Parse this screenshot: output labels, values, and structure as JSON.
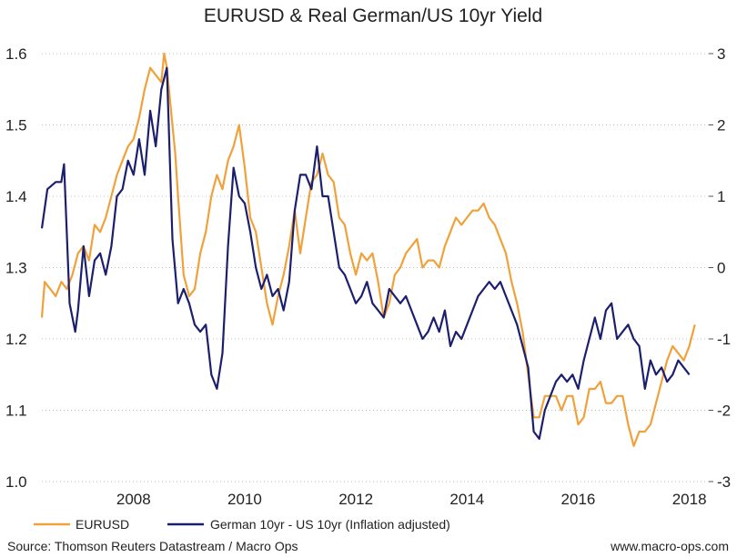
{
  "chart_data": {
    "type": "line",
    "title": "EURUSD & Real German/US 10yr Yield",
    "xlabel": "",
    "ylabel_left": "",
    "ylabel_right": "",
    "x_ticks": [
      "2008",
      "2010",
      "2012",
      "2014",
      "2016",
      "2018"
    ],
    "xlim": [
      2006.35,
      2018.35
    ],
    "ylim_left": [
      1.0,
      1.6
    ],
    "y_ticks_left": [
      "1.0",
      "1.1",
      "1.2",
      "1.3",
      "1.4",
      "1.5",
      "1.6"
    ],
    "ylim_right": [
      -3,
      3
    ],
    "y_ticks_right": [
      "-3",
      "-2",
      "-1",
      "0",
      "1",
      "2",
      "3"
    ],
    "grid": "horizontal-dotted",
    "legend_position": "bottom",
    "colors": {
      "eurusd": "#f0a13a",
      "spread": "#1c1f6e",
      "grid": "#bdbdbd"
    },
    "series": [
      {
        "name": "EURUSD",
        "axis": "left",
        "x": [
          2006.35,
          2006.4,
          2006.5,
          2006.6,
          2006.7,
          2006.8,
          2006.9,
          2007.0,
          2007.1,
          2007.2,
          2007.3,
          2007.4,
          2007.5,
          2007.6,
          2007.7,
          2007.8,
          2007.9,
          2008.0,
          2008.1,
          2008.2,
          2008.3,
          2008.4,
          2008.5,
          2008.55,
          2008.6,
          2008.7,
          2008.75,
          2008.8,
          2008.9,
          2009.0,
          2009.1,
          2009.2,
          2009.3,
          2009.4,
          2009.5,
          2009.6,
          2009.7,
          2009.8,
          2009.9,
          2010.0,
          2010.1,
          2010.2,
          2010.3,
          2010.4,
          2010.5,
          2010.6,
          2010.7,
          2010.8,
          2010.9,
          2011.0,
          2011.1,
          2011.2,
          2011.3,
          2011.4,
          2011.5,
          2011.6,
          2011.7,
          2011.8,
          2011.9,
          2012.0,
          2012.1,
          2012.2,
          2012.3,
          2012.4,
          2012.5,
          2012.6,
          2012.7,
          2012.8,
          2012.9,
          2013.0,
          2013.1,
          2013.2,
          2013.3,
          2013.4,
          2013.5,
          2013.6,
          2013.7,
          2013.8,
          2013.9,
          2014.0,
          2014.1,
          2014.2,
          2014.3,
          2014.4,
          2014.5,
          2014.6,
          2014.7,
          2014.8,
          2014.9,
          2015.0,
          2015.1,
          2015.2,
          2015.3,
          2015.4,
          2015.5,
          2015.6,
          2015.7,
          2015.8,
          2015.9,
          2016.0,
          2016.1,
          2016.2,
          2016.3,
          2016.4,
          2016.5,
          2016.6,
          2016.7,
          2016.8,
          2016.9,
          2017.0,
          2017.1,
          2017.2,
          2017.3,
          2017.4,
          2017.5,
          2017.6,
          2017.7,
          2017.8,
          2017.9,
          2018.0,
          2018.1
        ],
        "values": [
          1.23,
          1.28,
          1.27,
          1.26,
          1.28,
          1.27,
          1.29,
          1.32,
          1.33,
          1.31,
          1.36,
          1.35,
          1.37,
          1.4,
          1.43,
          1.45,
          1.47,
          1.48,
          1.51,
          1.55,
          1.58,
          1.57,
          1.56,
          1.6,
          1.58,
          1.5,
          1.46,
          1.4,
          1.29,
          1.26,
          1.27,
          1.32,
          1.35,
          1.4,
          1.43,
          1.41,
          1.45,
          1.47,
          1.5,
          1.44,
          1.37,
          1.35,
          1.3,
          1.25,
          1.22,
          1.26,
          1.29,
          1.33,
          1.38,
          1.32,
          1.37,
          1.42,
          1.43,
          1.46,
          1.43,
          1.42,
          1.37,
          1.36,
          1.32,
          1.29,
          1.32,
          1.31,
          1.32,
          1.28,
          1.23,
          1.25,
          1.29,
          1.3,
          1.32,
          1.33,
          1.34,
          1.3,
          1.31,
          1.31,
          1.3,
          1.33,
          1.35,
          1.37,
          1.36,
          1.37,
          1.38,
          1.38,
          1.39,
          1.37,
          1.36,
          1.34,
          1.32,
          1.28,
          1.25,
          1.21,
          1.15,
          1.09,
          1.09,
          1.12,
          1.12,
          1.12,
          1.1,
          1.12,
          1.12,
          1.08,
          1.09,
          1.13,
          1.13,
          1.14,
          1.11,
          1.11,
          1.12,
          1.12,
          1.08,
          1.05,
          1.07,
          1.07,
          1.08,
          1.11,
          1.14,
          1.17,
          1.19,
          1.18,
          1.17,
          1.19,
          1.22
        ]
      },
      {
        "name": "German 10yr - US 10yr (Inflation adjusted)",
        "axis": "right",
        "x": [
          2006.35,
          2006.45,
          2006.6,
          2006.7,
          2006.75,
          2006.85,
          2006.95,
          2007.0,
          2007.1,
          2007.2,
          2007.3,
          2007.4,
          2007.5,
          2007.6,
          2007.7,
          2007.8,
          2007.9,
          2008.0,
          2008.1,
          2008.2,
          2008.3,
          2008.4,
          2008.5,
          2008.6,
          2008.7,
          2008.8,
          2008.9,
          2009.0,
          2009.1,
          2009.2,
          2009.3,
          2009.4,
          2009.5,
          2009.6,
          2009.7,
          2009.8,
          2009.9,
          2010.0,
          2010.1,
          2010.2,
          2010.3,
          2010.4,
          2010.5,
          2010.6,
          2010.7,
          2010.8,
          2010.9,
          2011.0,
          2011.1,
          2011.2,
          2011.3,
          2011.4,
          2011.5,
          2011.6,
          2011.7,
          2011.8,
          2011.9,
          2012.0,
          2012.1,
          2012.2,
          2012.3,
          2012.4,
          2012.5,
          2012.6,
          2012.7,
          2012.8,
          2012.9,
          2013.0,
          2013.1,
          2013.2,
          2013.3,
          2013.4,
          2013.5,
          2013.6,
          2013.7,
          2013.8,
          2013.9,
          2014.0,
          2014.1,
          2014.2,
          2014.3,
          2014.4,
          2014.5,
          2014.6,
          2014.7,
          2014.8,
          2014.9,
          2015.0,
          2015.1,
          2015.2,
          2015.3,
          2015.4,
          2015.5,
          2015.6,
          2015.7,
          2015.8,
          2015.9,
          2016.0,
          2016.1,
          2016.2,
          2016.3,
          2016.4,
          2016.5,
          2016.6,
          2016.7,
          2016.8,
          2016.9,
          2017.0,
          2017.1,
          2017.2,
          2017.3,
          2017.4,
          2017.5,
          2017.6,
          2017.7,
          2017.8,
          2017.9,
          2018.0
        ],
        "values": [
          0.55,
          1.1,
          1.2,
          1.2,
          1.45,
          -0.5,
          -0.9,
          -0.6,
          0.3,
          -0.4,
          0.1,
          0.2,
          -0.1,
          0.3,
          1.0,
          1.1,
          1.5,
          1.3,
          1.8,
          1.3,
          2.2,
          1.7,
          2.5,
          2.8,
          0.4,
          -0.5,
          -0.3,
          -0.5,
          -0.8,
          -0.9,
          -0.8,
          -1.5,
          -1.7,
          -1.2,
          0.3,
          1.4,
          1.0,
          0.9,
          0.5,
          0.0,
          -0.3,
          -0.1,
          -0.4,
          -0.3,
          -0.6,
          -0.2,
          0.8,
          1.3,
          1.3,
          1.1,
          1.7,
          1.0,
          1.0,
          0.5,
          0.0,
          -0.1,
          -0.3,
          -0.5,
          -0.4,
          -0.2,
          -0.5,
          -0.6,
          -0.7,
          -0.3,
          -0.4,
          -0.5,
          -0.4,
          -0.6,
          -0.8,
          -1.0,
          -0.9,
          -0.7,
          -0.9,
          -0.6,
          -1.1,
          -0.9,
          -1.0,
          -0.8,
          -0.6,
          -0.4,
          -0.3,
          -0.2,
          -0.3,
          -0.2,
          -0.4,
          -0.6,
          -0.8,
          -1.1,
          -1.4,
          -2.3,
          -2.4,
          -2.0,
          -1.8,
          -1.6,
          -1.5,
          -1.6,
          -1.5,
          -1.7,
          -1.3,
          -1.0,
          -0.7,
          -1.0,
          -0.6,
          -0.5,
          -1.0,
          -0.9,
          -0.8,
          -1.0,
          -1.1,
          -1.7,
          -1.3,
          -1.5,
          -1.4,
          -1.6,
          -1.5,
          -1.3,
          -1.4,
          -1.5
        ]
      }
    ]
  },
  "footer": {
    "source": "Source: Thomson Reuters Datastream / Macro Ops",
    "website": "www.macro-ops.com"
  }
}
